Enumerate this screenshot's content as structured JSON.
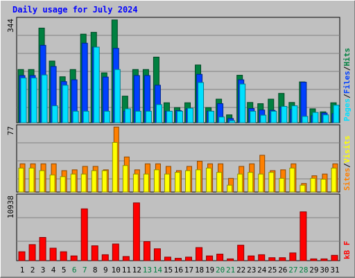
{
  "title": "Daily usage for July 2024",
  "colors": {
    "hits": "#008040",
    "files": "#0040ff",
    "pages": "#00e0ff",
    "visits": "#ffff00",
    "sites": "#ff8000",
    "kbytes": "#ff0000",
    "background": "#c0c0c0",
    "title": "#0000ff",
    "weekend_label": "#008040"
  },
  "chart_data": [
    {
      "type": "bar",
      "panel": "top",
      "ymax_label": "344",
      "ylim": [
        0,
        344
      ],
      "grid": true,
      "legend": [
        {
          "label": "Pages",
          "color": "#00e0ff"
        },
        {
          "label": "/",
          "color": "#000000"
        },
        {
          "label": "Files",
          "color": "#0040ff"
        },
        {
          "label": "/",
          "color": "#000000"
        },
        {
          "label": "Hits",
          "color": "#008040"
        }
      ],
      "categories": [
        "1",
        "2",
        "3",
        "4",
        "5",
        "6",
        "7",
        "8",
        "9",
        "10",
        "11",
        "12",
        "13",
        "14",
        "15",
        "16",
        "17",
        "18",
        "19",
        "20",
        "21",
        "22",
        "23",
        "24",
        "25",
        "26",
        "27",
        "28",
        "29",
        "30",
        "31"
      ],
      "series": [
        {
          "name": "Hits",
          "values": [
            176,
            176,
            313,
            204,
            152,
            176,
            293,
            299,
            165,
            340,
            88,
            176,
            176,
            217,
            66,
            50,
            66,
            191,
            50,
            78,
            26,
            157,
            67,
            63,
            78,
            97,
            67,
            135,
            46,
            36,
            66
          ]
        },
        {
          "name": "Files",
          "values": [
            156,
            156,
            256,
            186,
            136,
            142,
            263,
            250,
            151,
            246,
            38,
            156,
            156,
            124,
            38,
            40,
            46,
            160,
            38,
            63,
            14,
            142,
            47,
            42,
            41,
            52,
            44,
            134,
            23,
            32,
            30
          ]
        },
        {
          "name": "Pages",
          "values": [
            148,
            148,
            158,
            56,
            124,
            38,
            38,
            250,
            38,
            176,
            46,
            38,
            38,
            60,
            38,
            38,
            48,
            133,
            38,
            19,
            7,
            128,
            38,
            25,
            38,
            54,
            56,
            21,
            34,
            26,
            58
          ]
        }
      ]
    },
    {
      "type": "bar",
      "panel": "middle",
      "ymax_label": "77",
      "ylim": [
        0,
        77
      ],
      "grid": true,
      "legend": [
        {
          "label": "Sites",
          "color": "#ff8000"
        },
        {
          "label": "/",
          "color": "#000000"
        },
        {
          "label": "Visits",
          "color": "#ffff00"
        }
      ],
      "categories": [
        "1",
        "2",
        "3",
        "4",
        "5",
        "6",
        "7",
        "8",
        "9",
        "10",
        "11",
        "12",
        "13",
        "14",
        "15",
        "16",
        "17",
        "18",
        "19",
        "20",
        "21",
        "22",
        "23",
        "24",
        "25",
        "26",
        "27",
        "28",
        "29",
        "30",
        "31"
      ],
      "series": [
        {
          "name": "Sites",
          "values": [
            33,
            33,
            33,
            33,
            25,
            26,
            30,
            30,
            26,
            76,
            41,
            26,
            33,
            33,
            30,
            25,
            30,
            36,
            33,
            33,
            16,
            30,
            33,
            43,
            25,
            26,
            33,
            10,
            19,
            21,
            33
          ]
        },
        {
          "name": "Visits",
          "values": [
            28,
            28,
            25,
            20,
            18,
            21,
            21,
            25,
            25,
            58,
            31,
            21,
            21,
            26,
            21,
            23,
            25,
            26,
            28,
            23,
            8,
            21,
            23,
            21,
            23,
            16,
            28,
            8,
            16,
            15,
            28
          ]
        }
      ]
    },
    {
      "type": "bar",
      "panel": "bottom",
      "ymax_label": "10938",
      "ylim": [
        0,
        10938
      ],
      "grid": true,
      "legend": [
        {
          "label": "kB F",
          "color": "#ff0000"
        }
      ],
      "categories": [
        "1",
        "2",
        "3",
        "4",
        "5",
        "6",
        "7",
        "8",
        "9",
        "10",
        "11",
        "12",
        "13",
        "14",
        "15",
        "16",
        "17",
        "18",
        "19",
        "20",
        "21",
        "22",
        "23",
        "24",
        "25",
        "26",
        "27",
        "28",
        "29",
        "30",
        "31"
      ],
      "series": [
        {
          "name": "kB F",
          "values": [
            1500,
            2700,
            3900,
            2100,
            1500,
            800,
            8700,
            2500,
            1000,
            2800,
            700,
            9700,
            3200,
            2000,
            600,
            400,
            600,
            2200,
            800,
            1100,
            300,
            2600,
            800,
            1000,
            500,
            500,
            1300,
            8200,
            300,
            300,
            900
          ]
        }
      ]
    }
  ]
}
